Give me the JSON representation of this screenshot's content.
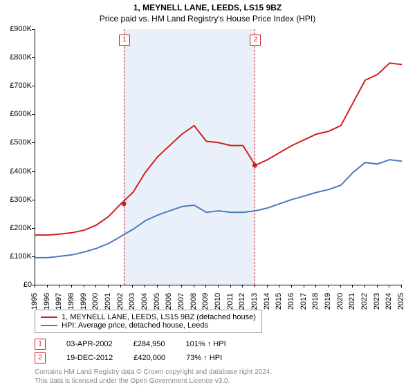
{
  "title": "1, MEYNELL LANE, LEEDS, LS15 9BZ",
  "subtitle": "Price paid vs. HM Land Registry's House Price Index (HPI)",
  "chart": {
    "type": "line",
    "background_color": "#ffffff",
    "band_color": "#eaf0fa",
    "x_years": [
      1995,
      1996,
      1997,
      1998,
      1999,
      2000,
      2001,
      2002,
      2003,
      2004,
      2005,
      2006,
      2007,
      2008,
      2009,
      2010,
      2011,
      2012,
      2013,
      2014,
      2015,
      2016,
      2017,
      2018,
      2019,
      2020,
      2021,
      2022,
      2023,
      2024,
      2025
    ],
    "x_min": 1995,
    "x_max": 2025,
    "y_min": 0,
    "y_max": 900000,
    "y_ticks": [
      0,
      100000,
      200000,
      300000,
      400000,
      500000,
      600000,
      700000,
      800000,
      900000
    ],
    "y_tick_labels": [
      "£0",
      "£100K",
      "£200K",
      "£300K",
      "£400K",
      "£500K",
      "£600K",
      "£700K",
      "£800K",
      "£900K"
    ],
    "band_start_year": 2002.25,
    "band_end_year": 2012.97,
    "vline1_year": 2002.25,
    "vline2_year": 2012.97,
    "vline_color": "#d02020",
    "vline_dash": "2,3",
    "marker_border": "#d02020",
    "series1": {
      "label": "1, MEYNELL LANE, LEEDS, LS15 9BZ (detached house)",
      "color": "#d02020",
      "width": 2,
      "points_y": [
        175000,
        175000,
        178000,
        183000,
        192000,
        210000,
        240000,
        284950,
        325000,
        395000,
        450000,
        490000,
        530000,
        560000,
        505000,
        500000,
        490000,
        490000,
        420000,
        440000,
        465000,
        490000,
        510000,
        530000,
        540000,
        560000,
        640000,
        720000,
        740000,
        780000,
        775000
      ]
    },
    "series2": {
      "label": "HPI: Average price, detached house, Leeds",
      "color": "#4a7ac0",
      "width": 2,
      "points_y": [
        95000,
        95000,
        100000,
        105000,
        115000,
        128000,
        145000,
        170000,
        195000,
        225000,
        245000,
        260000,
        275000,
        280000,
        255000,
        260000,
        255000,
        255000,
        260000,
        270000,
        285000,
        300000,
        312000,
        325000,
        335000,
        350000,
        395000,
        430000,
        425000,
        440000,
        435000
      ]
    },
    "tx1_point": {
      "year": 2002.25,
      "value": 284950,
      "color": "#d02020"
    },
    "tx2_point": {
      "year": 2012.97,
      "value": 420000,
      "color": "#d02020"
    }
  },
  "legend": {
    "item1": "1, MEYNELL LANE, LEEDS, LS15 9BZ (detached house)",
    "item2": "HPI: Average price, detached house, Leeds"
  },
  "transactions": {
    "tx1": {
      "marker": "1",
      "date": "03-APR-2002",
      "price": "£284,950",
      "pct": "101% ↑ HPI"
    },
    "tx2": {
      "marker": "2",
      "date": "19-DEC-2012",
      "price": "£420,000",
      "pct": "73% ↑ HPI"
    }
  },
  "footer": {
    "line1": "Contains HM Land Registry data © Crown copyright and database right 2024.",
    "line2": "This data is licensed under the Open Government Licence v3.0."
  }
}
